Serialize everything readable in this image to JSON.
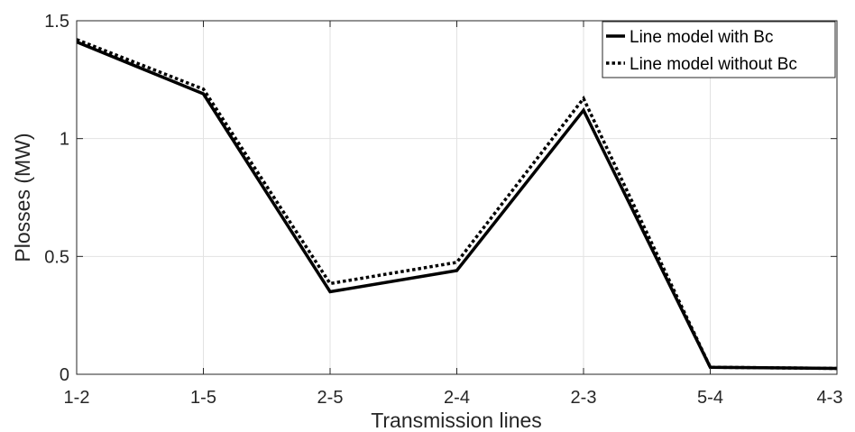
{
  "chart_data": {
    "type": "line",
    "categories": [
      "1-2",
      "1-5",
      "2-5",
      "2-4",
      "2-3",
      "5-4",
      "4-3"
    ],
    "series": [
      {
        "name": "Line model with Bc",
        "style": "solid",
        "color": "#000000",
        "values": [
          1.41,
          1.19,
          0.35,
          0.44,
          1.12,
          0.03,
          0.025
        ]
      },
      {
        "name": "Line model without Bc",
        "style": "dotted",
        "color": "#000000",
        "values": [
          1.42,
          1.21,
          0.385,
          0.475,
          1.17,
          0.03,
          0.025
        ]
      }
    ],
    "xlabel": "Transmission lines",
    "ylabel": "Plosses (MW)",
    "ylim": [
      0,
      1.5
    ],
    "yticks": [
      0,
      0.5,
      1,
      1.5
    ],
    "ytick_labels": [
      "0",
      "0.5",
      "1",
      "1.5"
    ],
    "grid": true,
    "legend_position": "top-right"
  }
}
